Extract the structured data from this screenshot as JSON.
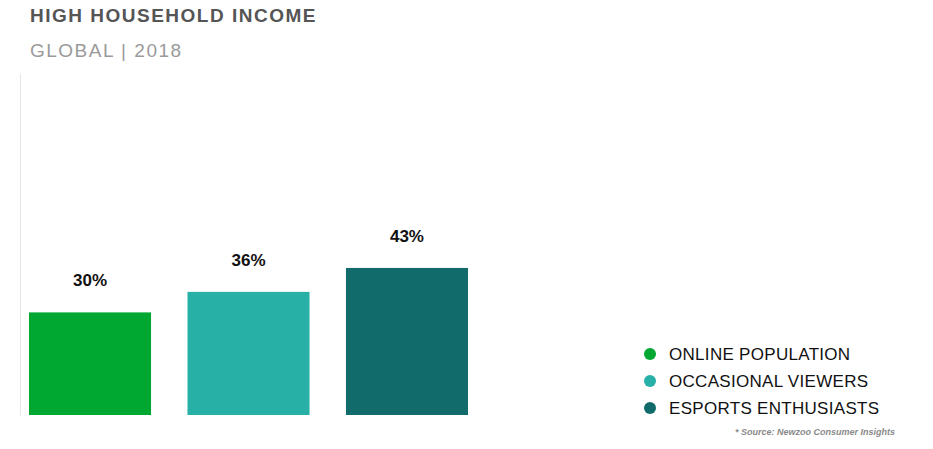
{
  "chart_data": {
    "type": "bar",
    "title": "HIGH HOUSEHOLD INCOME",
    "subtitle": "GLOBAL | 2018",
    "categories": [
      "ONLINE POPULATION",
      "OCCASIONAL VIEWERS",
      "ESPORTS ENTHUSIASTS"
    ],
    "values": [
      30,
      36,
      43
    ],
    "value_labels": [
      "30%",
      "36%",
      "43%"
    ],
    "colors": [
      "#00a832",
      "#26b0a6",
      "#126b6b"
    ],
    "ylim": [
      0,
      100
    ],
    "data_labels": true,
    "tick_labels": false,
    "legend": "bottom-right",
    "annotations": [
      "* Source: Newzoo Consumer Insights"
    ]
  }
}
